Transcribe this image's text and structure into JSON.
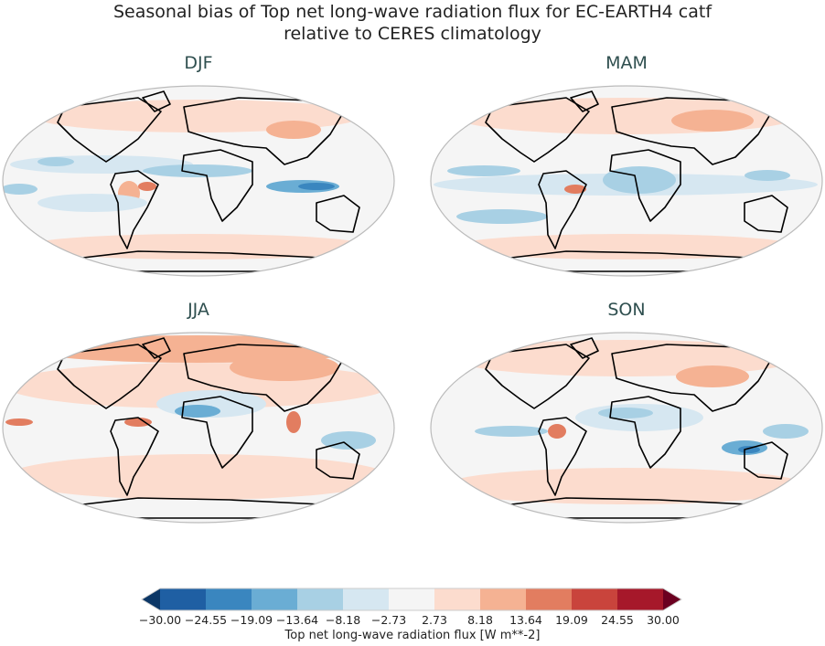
{
  "chart_data": {
    "type": "heatmap",
    "title": "Seasonal bias of Top net long-wave radiation flux for EC-EARTH4 catf",
    "subtitle": "relative to CERES climatology",
    "panels": [
      "DJF",
      "MAM",
      "JJA",
      "SON"
    ],
    "colorbar": {
      "label": "Top net long-wave radiation flux [W m**-2]",
      "ticks": [
        "−30.00",
        "−24.55",
        "−19.09",
        "−13.64",
        "−8.18",
        "−2.73",
        "2.73",
        "8.18",
        "13.64",
        "19.09",
        "24.55",
        "30.00"
      ],
      "range": [
        -30,
        30
      ],
      "extend": "both",
      "colors": [
        "#1f5fa3",
        "#3a86bf",
        "#6aadd4",
        "#a8d0e4",
        "#d6e7f1",
        "#f5f5f5",
        "#fcdcce",
        "#f5b293",
        "#e27d60",
        "#c9443c",
        "#a6182a"
      ],
      "under_color": "#0c3766",
      "over_color": "#6b0020"
    }
  }
}
